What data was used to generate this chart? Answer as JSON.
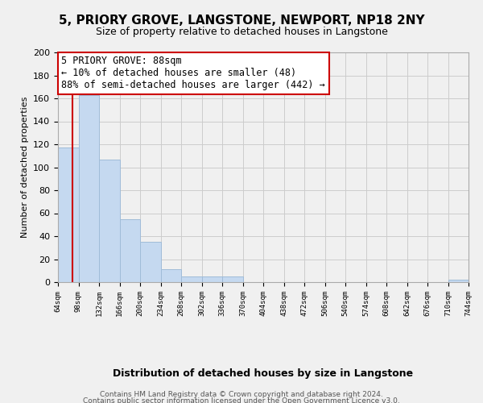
{
  "title": "5, PRIORY GROVE, LANGSTONE, NEWPORT, NP18 2NY",
  "subtitle": "Size of property relative to detached houses in Langstone",
  "xlabel": "Distribution of detached houses by size in Langstone",
  "ylabel": "Number of detached properties",
  "bar_color": "#c5d9f0",
  "bar_edge_color": "#a0bcd8",
  "grid_color": "#cccccc",
  "background_color": "#f0f0f0",
  "bin_edges": [
    64,
    98,
    132,
    166,
    200,
    234,
    268,
    302,
    336,
    370,
    404,
    438,
    472,
    506,
    540,
    574,
    608,
    642,
    676,
    710,
    744
  ],
  "bar_heights": [
    117,
    163,
    107,
    55,
    35,
    11,
    5,
    5,
    5,
    0,
    0,
    0,
    0,
    0,
    0,
    0,
    0,
    0,
    0,
    2
  ],
  "tick_labels": [
    "64sqm",
    "98sqm",
    "132sqm",
    "166sqm",
    "200sqm",
    "234sqm",
    "268sqm",
    "302sqm",
    "336sqm",
    "370sqm",
    "404sqm",
    "438sqm",
    "472sqm",
    "506sqm",
    "540sqm",
    "574sqm",
    "608sqm",
    "642sqm",
    "676sqm",
    "710sqm",
    "744sqm"
  ],
  "ylim": [
    0,
    200
  ],
  "yticks": [
    0,
    20,
    40,
    60,
    80,
    100,
    120,
    140,
    160,
    180,
    200
  ],
  "property_line_x": 88,
  "annotation_text": "5 PRIORY GROVE: 88sqm\n← 10% of detached houses are smaller (48)\n88% of semi-detached houses are larger (442) →",
  "annotation_box_color": "#ffffff",
  "annotation_border_color": "#cc0000",
  "red_line_color": "#cc0000",
  "footer_line1": "Contains HM Land Registry data © Crown copyright and database right 2024.",
  "footer_line2": "Contains public sector information licensed under the Open Government Licence v3.0."
}
